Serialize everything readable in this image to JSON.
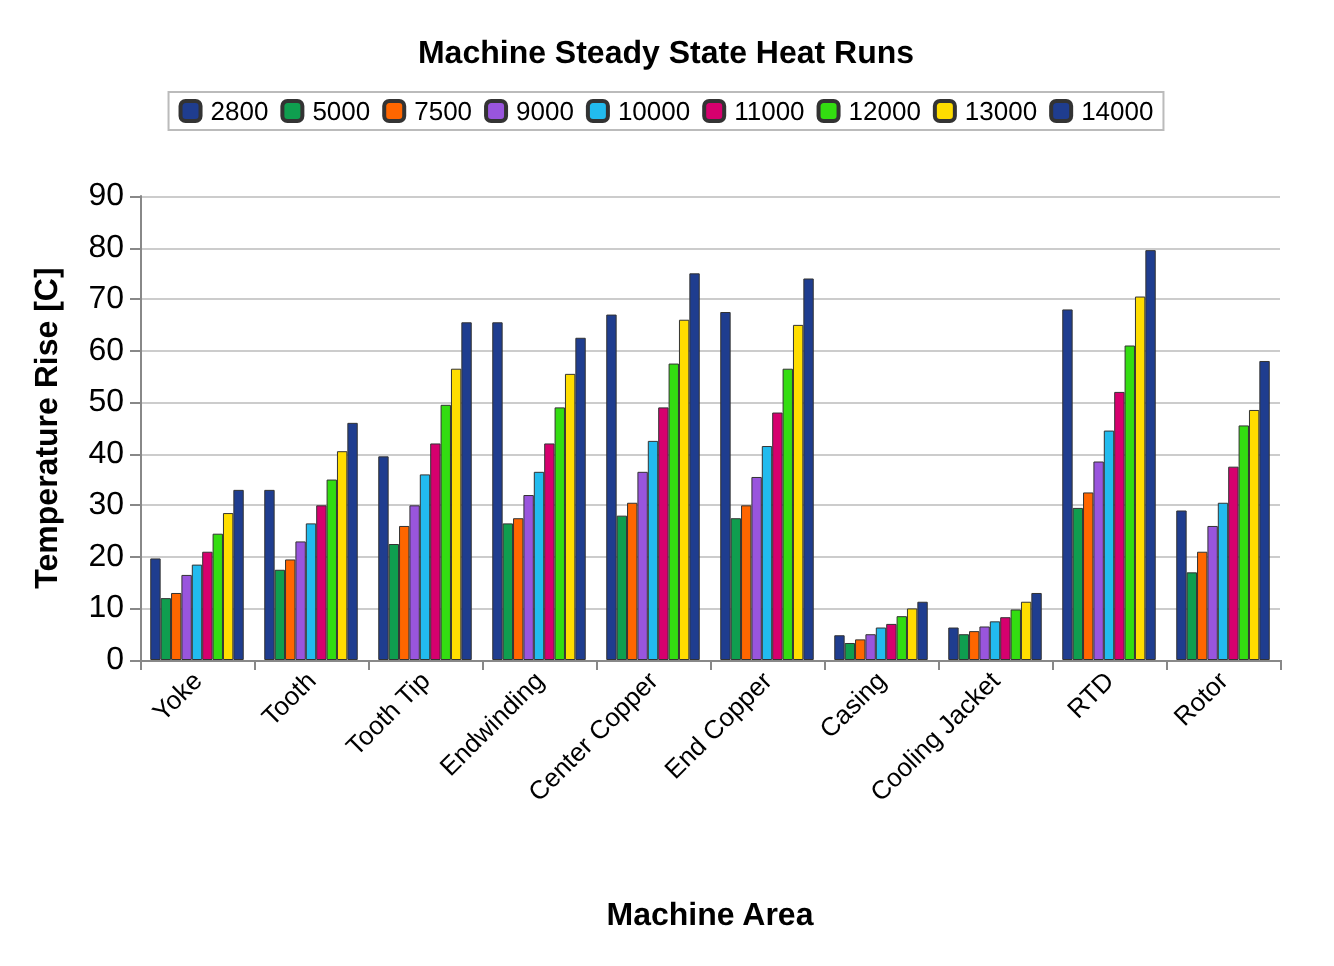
{
  "chart_data": {
    "type": "bar",
    "title": "Machine Steady State Heat Runs",
    "xlabel": "Machine Area",
    "ylabel": "Temperature Rise [C]",
    "categories": [
      "Yoke",
      "Tooth",
      "Tooth Tip",
      "Endwinding",
      "Center Copper",
      "End Copper",
      "Casing",
      "Cooling Jacket",
      "RTD",
      "Rotor"
    ],
    "series": [
      {
        "name": "2800",
        "color": "#1f3d8f",
        "values": [
          19.7,
          33,
          39.5,
          65.5,
          67,
          67.5,
          4.8,
          6.3,
          68,
          29
        ]
      },
      {
        "name": "5000",
        "color": "#0f9e4f",
        "values": [
          12,
          17.5,
          22.5,
          26.5,
          28,
          27.5,
          3.3,
          5,
          29.5,
          17
        ]
      },
      {
        "name": "7500",
        "color": "#ff6600",
        "values": [
          13,
          19.5,
          26,
          27.5,
          30.5,
          30,
          4,
          5.6,
          32.5,
          21
        ]
      },
      {
        "name": "9000",
        "color": "#9955dd",
        "values": [
          16.5,
          23,
          30,
          32,
          36.5,
          35.5,
          5,
          6.5,
          38.5,
          26
        ]
      },
      {
        "name": "10000",
        "color": "#22bbee",
        "values": [
          18.5,
          26.5,
          36,
          36.5,
          42.5,
          41.5,
          6.3,
          7.5,
          44.5,
          30.5
        ]
      },
      {
        "name": "11000",
        "color": "#d6006e",
        "values": [
          21,
          30,
          42,
          42,
          49,
          48,
          7,
          8.3,
          52,
          37.5
        ]
      },
      {
        "name": "12000",
        "color": "#33dd11",
        "values": [
          24.5,
          35,
          49.5,
          49,
          57.5,
          56.5,
          8.5,
          9.8,
          61,
          45.5
        ]
      },
      {
        "name": "13000",
        "color": "#ffdd00",
        "values": [
          28.5,
          40.5,
          56.5,
          55.5,
          66,
          65,
          10,
          11.3,
          70.5,
          48.5
        ]
      },
      {
        "name": "14000",
        "color": "#1f3d8f",
        "values": [
          33,
          46,
          65.5,
          62.5,
          75,
          74,
          11.3,
          13,
          79.5,
          58
        ]
      }
    ],
    "ylim": [
      0,
      90
    ],
    "yticks": [
      0,
      10,
      20,
      30,
      40,
      50,
      60,
      70,
      80,
      90
    ],
    "grid": "y",
    "legend": "top"
  }
}
